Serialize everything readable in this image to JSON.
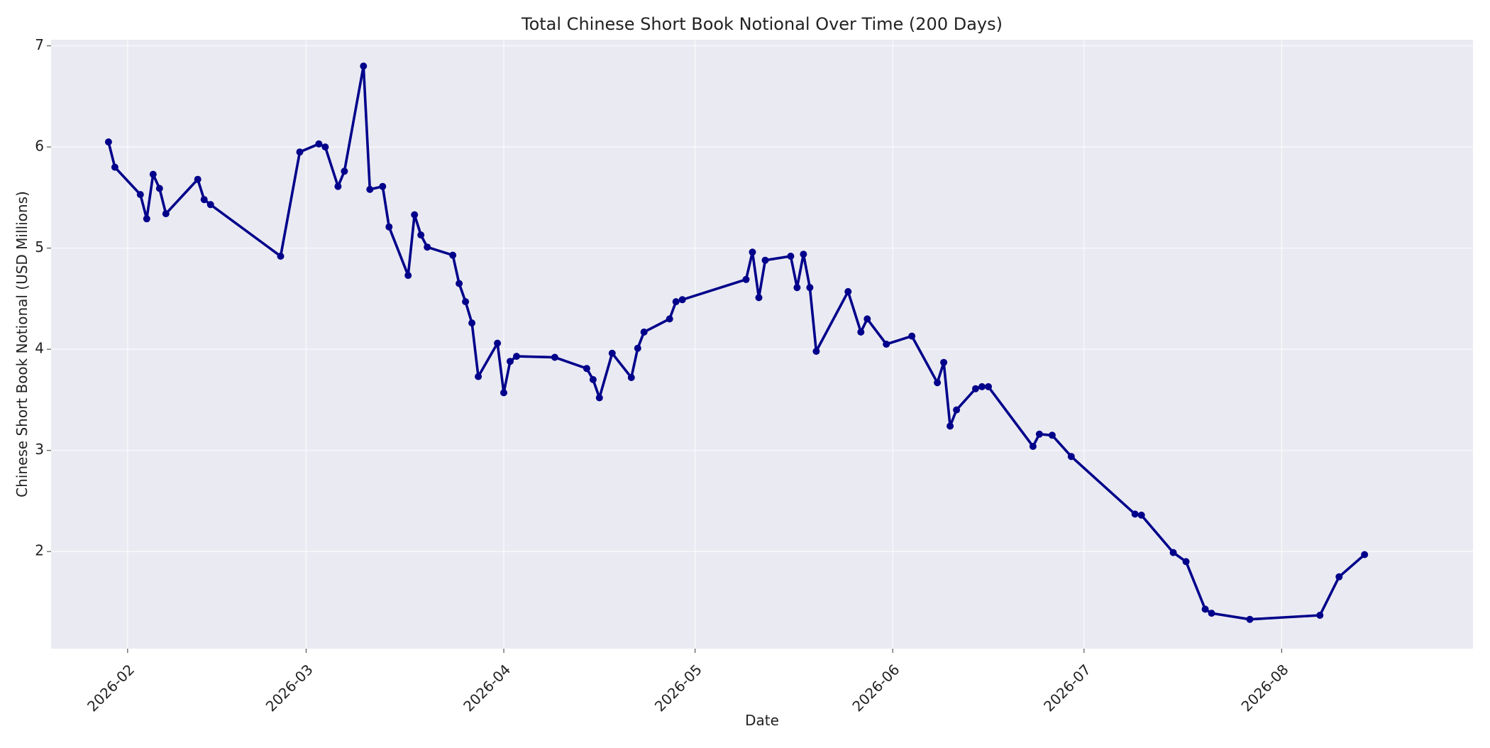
{
  "chart_data": {
    "type": "line",
    "title": "Total Chinese Short Book Notional Over Time (200 Days)",
    "xlabel": "Date",
    "ylabel": "Chinese Short Book Notional (USD Millions)",
    "x_ticks": [
      "2026-02-01",
      "2026-03-01",
      "2026-04-01",
      "2026-05-01",
      "2026-06-01",
      "2026-07-01",
      "2026-08-01"
    ],
    "x_tick_labels": [
      "2026-02",
      "2026-03",
      "2026-04",
      "2026-05",
      "2026-06",
      "2026-07",
      "2026-08"
    ],
    "y_ticks": [
      2,
      3,
      4,
      5,
      6,
      7
    ],
    "y_tick_labels": [
      "2",
      "3",
      "4",
      "5",
      "6",
      "7"
    ],
    "xlim": [
      "2026-01-20",
      "2026-08-31"
    ],
    "ylim": [
      1.04,
      7.06
    ],
    "grid": true,
    "legend": "none",
    "colors": {
      "line": "#00008b",
      "plot_background": "#eaeaf2",
      "grid": "#ffffff"
    },
    "series": [
      {
        "x": [
          "2026-01-29",
          "2026-01-30",
          "2026-02-03",
          "2026-02-04",
          "2026-02-05",
          "2026-02-06",
          "2026-02-07",
          "2026-02-12",
          "2026-02-13",
          "2026-02-14",
          "2026-02-25",
          "2026-02-28",
          "2026-03-03",
          "2026-03-04",
          "2026-03-06",
          "2026-03-07",
          "2026-03-10",
          "2026-03-11",
          "2026-03-13",
          "2026-03-14",
          "2026-03-17",
          "2026-03-18",
          "2026-03-19",
          "2026-03-20",
          "2026-03-24",
          "2026-03-25",
          "2026-03-26",
          "2026-03-27",
          "2026-03-28",
          "2026-03-31",
          "2026-04-01",
          "2026-04-02",
          "2026-04-03",
          "2026-04-09",
          "2026-04-14",
          "2026-04-15",
          "2026-04-16",
          "2026-04-18",
          "2026-04-21",
          "2026-04-22",
          "2026-04-23",
          "2026-04-27",
          "2026-04-28",
          "2026-04-29",
          "2026-05-09",
          "2026-05-10",
          "2026-05-11",
          "2026-05-12",
          "2026-05-16",
          "2026-05-17",
          "2026-05-18",
          "2026-05-19",
          "2026-05-20",
          "2026-05-25",
          "2026-05-27",
          "2026-05-28",
          "2026-05-31",
          "2026-06-04",
          "2026-06-08",
          "2026-06-09",
          "2026-06-10",
          "2026-06-11",
          "2026-06-14",
          "2026-06-15",
          "2026-06-16",
          "2026-06-23",
          "2026-06-24",
          "2026-06-26",
          "2026-06-29",
          "2026-07-09",
          "2026-07-10",
          "2026-07-15",
          "2026-07-17",
          "2026-07-20",
          "2026-07-21",
          "2026-07-27",
          "2026-08-07",
          "2026-08-10",
          "2026-08-14"
        ],
        "y": [
          6.05,
          5.8,
          5.53,
          5.29,
          5.73,
          5.59,
          5.34,
          5.68,
          5.48,
          5.43,
          4.92,
          5.95,
          6.03,
          6.0,
          5.61,
          5.76,
          6.8,
          5.58,
          5.61,
          5.21,
          4.73,
          5.33,
          5.13,
          5.01,
          4.93,
          4.65,
          4.47,
          4.26,
          3.73,
          4.06,
          3.57,
          3.88,
          3.93,
          3.92,
          3.81,
          3.7,
          3.52,
          3.96,
          3.72,
          4.01,
          4.17,
          4.3,
          4.47,
          4.49,
          4.69,
          4.96,
          4.51,
          4.88,
          4.92,
          4.61,
          4.94,
          4.61,
          3.98,
          4.57,
          4.17,
          4.3,
          4.05,
          4.13,
          3.67,
          3.87,
          3.24,
          3.4,
          3.61,
          3.63,
          3.63,
          3.04,
          3.16,
          3.15,
          2.94,
          2.37,
          2.36,
          1.99,
          1.9,
          1.43,
          1.39,
          1.33,
          1.37,
          1.75,
          1.97
        ]
      }
    ]
  }
}
